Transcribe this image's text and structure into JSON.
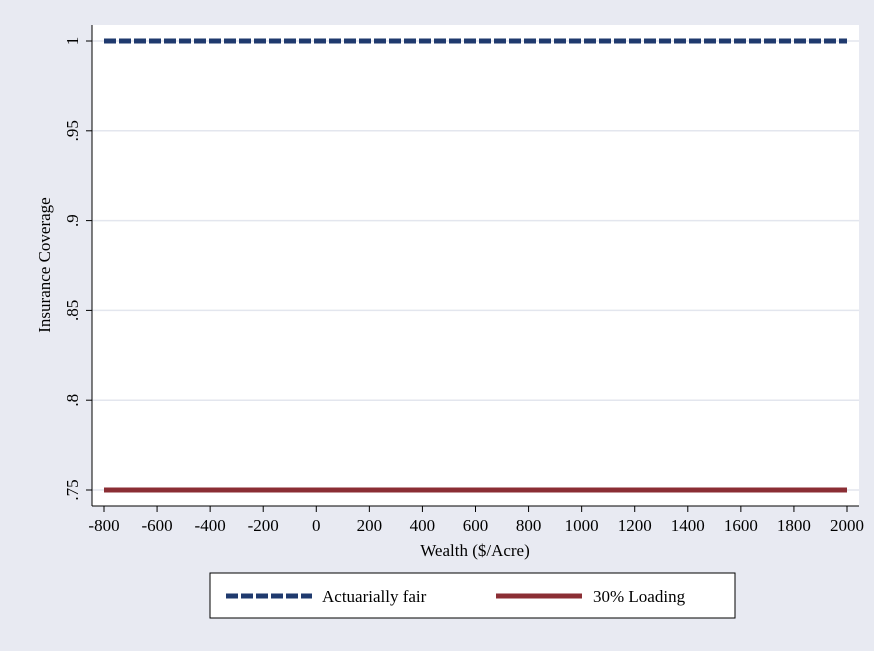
{
  "chart_data": {
    "type": "line",
    "title": "",
    "xlabel": "Wealth ($/Acre)",
    "ylabel": "Insurance Coverage",
    "xlim": [
      -800,
      2000
    ],
    "ylim": [
      0.75,
      1.0
    ],
    "x_ticks": [
      -800,
      -600,
      -400,
      -200,
      0,
      200,
      400,
      600,
      800,
      1000,
      1200,
      1400,
      1600,
      1800,
      2000
    ],
    "y_ticks": [
      0.75,
      0.8,
      0.85,
      0.9,
      0.95,
      1.0
    ],
    "y_tick_labels": [
      ".75",
      ".8",
      ".85",
      ".9",
      ".95",
      "1"
    ],
    "grid": true,
    "legend_position": "bottom",
    "series": [
      {
        "name": "Actuarially fair",
        "color": "#1f3a6e",
        "style": "dashed",
        "x": [
          -800,
          2000
        ],
        "y": [
          1.0,
          1.0
        ]
      },
      {
        "name": "30% Loading",
        "color": "#8b2e34",
        "style": "solid",
        "x": [
          -800,
          2000
        ],
        "y": [
          0.75,
          0.75
        ]
      }
    ]
  }
}
